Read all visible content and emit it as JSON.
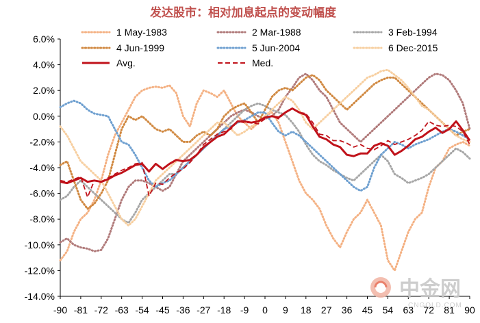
{
  "chart_data": {
    "type": "line",
    "title": "发达股市：相对加息起点的变动幅度",
    "xlabel": "",
    "ylabel": "",
    "x": [
      -90,
      -87,
      -84,
      -81,
      -78,
      -75,
      -72,
      -69,
      -66,
      -63,
      -60,
      -57,
      -54,
      -51,
      -48,
      -45,
      -42,
      -39,
      -36,
      -33,
      -30,
      -27,
      -24,
      -21,
      -18,
      -15,
      -12,
      -9,
      -6,
      -3,
      0,
      3,
      6,
      9,
      12,
      15,
      18,
      21,
      24,
      27,
      30,
      33,
      36,
      39,
      42,
      45,
      48,
      51,
      54,
      57,
      60,
      63,
      66,
      69,
      72,
      75,
      78,
      81,
      84,
      87,
      90
    ],
    "x_ticks": [
      "-90",
      "-81",
      "-72",
      "-63",
      "-54",
      "-45",
      "-36",
      "-27",
      "-18",
      "-9",
      "0",
      "9",
      "18",
      "27",
      "36",
      "45",
      "54",
      "63",
      "72",
      "81",
      "90"
    ],
    "y_ticks": [
      "6.0%",
      "4.0%",
      "2.0%",
      "0.0%",
      "-2.0%",
      "-4.0%",
      "-6.0%",
      "-8.0%",
      "-10.0%",
      "-12.0%",
      "-14.0%"
    ],
    "ylim": [
      -14,
      6
    ],
    "xlim": [
      -90,
      90
    ],
    "legend_position": "top",
    "series": [
      {
        "name": "1 May-1983",
        "style": "dotted",
        "color": "#f4b183",
        "values": [
          -11.2,
          -10.5,
          -9,
          -8,
          -7.5,
          -6.5,
          -5,
          -3,
          -1.5,
          -0.5,
          0.5,
          1.5,
          2,
          2.2,
          2.3,
          2.2,
          2.4,
          1.8,
          0,
          -0.8,
          1,
          2,
          1.8,
          1.5,
          2,
          1,
          0,
          -0.5,
          -1,
          -0.5,
          0,
          0.3,
          -0.5,
          -2,
          -3.5,
          -5,
          -6,
          -6.5,
          -7.2,
          -8.5,
          -9.5,
          -10.2,
          -9,
          -8,
          -7.5,
          -6.5,
          -7.5,
          -8.5,
          -11.2,
          -12,
          -10.5,
          -9,
          -8,
          -7.5,
          -5.5,
          -4,
          -3.5,
          -2.5,
          -2.2,
          -2,
          -2.3
        ]
      },
      {
        "name": "2 Mar-1988",
        "style": "dotted",
        "color": "#b07a7a",
        "values": [
          -9.8,
          -9.5,
          -10,
          -10.2,
          -10.3,
          -10.5,
          -10.4,
          -9.5,
          -8,
          -6.5,
          -5.5,
          -5,
          -5,
          -5.2,
          -5.5,
          -5.8,
          -5.5,
          -4.5,
          -3.5,
          -3,
          -2.5,
          -2,
          -1.5,
          -1,
          -0.5,
          0,
          0.3,
          0.5,
          0.3,
          0,
          -0.2,
          0,
          0.5,
          1.5,
          2.2,
          3,
          3.3,
          2.8,
          2,
          1.5,
          0.5,
          -0.5,
          -1,
          -1.5,
          -2,
          -1.5,
          -1,
          -0.5,
          0,
          0.5,
          1,
          1.5,
          2,
          2.5,
          3,
          3.3,
          3.2,
          2.8,
          2,
          1,
          -1
        ]
      },
      {
        "name": "3 Feb-1994",
        "style": "dotted",
        "color": "#a6a6a6",
        "values": [
          -6.5,
          -6.2,
          -5.5,
          -5,
          -5.5,
          -6,
          -6.5,
          -7,
          -7.5,
          -8,
          -8.3,
          -7.5,
          -6.5,
          -6,
          -5.5,
          -5,
          -4.5,
          -4.5,
          -4,
          -3.5,
          -3,
          -2.5,
          -2,
          -1.5,
          -1,
          -0.5,
          0,
          0.5,
          0.8,
          1,
          0.8,
          0.5,
          0.3,
          0.1,
          -0.5,
          -1.2,
          -2.2,
          -3,
          -3.5,
          -3.8,
          -4.2,
          -4.5,
          -4.8,
          -5,
          -4.5,
          -4,
          -3.5,
          -3,
          -3.5,
          -4.5,
          -4.8,
          -5.2,
          -5,
          -4.8,
          -4.5,
          -4,
          -3.5,
          -3,
          -2.5,
          -2.8,
          -3.3
        ]
      },
      {
        "name": "4 Jun-1999",
        "style": "dotted",
        "color": "#d08840",
        "values": [
          -3.8,
          -3.5,
          -5,
          -6.5,
          -7.2,
          -6.8,
          -6,
          -5,
          -3,
          -1,
          0,
          -0.3,
          0,
          -0.5,
          -1,
          -1.2,
          -1,
          -1.5,
          -2,
          -2,
          -1.5,
          -1.2,
          -1.5,
          -1,
          0,
          0.5,
          0.8,
          1,
          0.3,
          -0.5,
          0.5,
          1.5,
          2,
          2.2,
          2,
          2.5,
          3,
          3.2,
          2.8,
          2,
          1.5,
          1,
          0.5,
          1,
          1.5,
          2,
          2.5,
          2.8,
          3,
          3,
          2.5,
          2,
          1.5,
          1,
          0.5,
          0,
          -0.5,
          -1,
          -1.5,
          -1.2,
          -1
        ]
      },
      {
        "name": "5 Jun-2004",
        "style": "dotted",
        "color": "#6fa0d0",
        "values": [
          0.7,
          1.0,
          1.2,
          1.0,
          0.5,
          0.2,
          0.1,
          0,
          -1,
          -2,
          -2.2,
          -3,
          -4,
          -5,
          -5.5,
          -5.2,
          -5,
          -4.5,
          -4,
          -3.5,
          -3,
          -2.5,
          -2,
          -1.5,
          -1,
          -0.8,
          -0.5,
          -0.3,
          0,
          0.3,
          0.3,
          -0.5,
          -1.2,
          -1.5,
          -1.2,
          -1.5,
          -2,
          -2.5,
          -3,
          -3.5,
          -4,
          -4.5,
          -5,
          -5.5,
          -5.8,
          -5.5,
          -4,
          -3,
          -2.5,
          -2,
          -2.2,
          -2.5,
          -2.2,
          -2,
          -1.8,
          -1.5,
          -1.2,
          -1,
          -1.2,
          -1.5,
          -1.8
        ]
      },
      {
        "name": "6 Dec-2015",
        "style": "dotted",
        "color": "#f7cfa0",
        "values": [
          -0.8,
          -1.5,
          -2.5,
          -3.5,
          -4,
          -4.5,
          -5,
          -6,
          -7,
          -8,
          -8.5,
          -8,
          -7,
          -6,
          -5,
          -4.5,
          -4,
          -3.5,
          -3,
          -2.5,
          -2,
          -1.5,
          -1,
          -0.5,
          -0.5,
          -1,
          -1.5,
          -1.2,
          -0.8,
          -0.5,
          0,
          0.5,
          1,
          1.5,
          1.2,
          0.5,
          -0.5,
          -1,
          -0.5,
          0,
          0.5,
          1,
          1.5,
          2,
          2.5,
          3,
          3.2,
          3.5,
          3.6,
          3.2,
          2.8,
          2.2,
          1.5,
          0.8,
          0.5,
          0,
          -0.5,
          -1,
          -1.5,
          -1.8,
          -2
        ]
      },
      {
        "name": "Avg.",
        "style": "solid",
        "color": "#c0121a",
        "values": [
          -5.1,
          -5.2,
          -5,
          -4.8,
          -5.1,
          -5,
          -5.1,
          -4.9,
          -4.6,
          -4.4,
          -4.1,
          -3.8,
          -3.7,
          -4.3,
          -3.7,
          -4.1,
          -3.7,
          -3.4,
          -3.5,
          -3.4,
          -3,
          -2.4,
          -2,
          -1.6,
          -1.4,
          -0.9,
          -0.4,
          -0.4,
          -0.5,
          -0.4,
          -0.1,
          0,
          -0.1,
          0.3,
          0.6,
          0.3,
          0.1,
          -0.8,
          -1.6,
          -1.8,
          -2.2,
          -2.4,
          -3,
          -3.1,
          -2.9,
          -2.9,
          -2.3,
          -2.1,
          -2.3,
          -3,
          -2.7,
          -2.3,
          -1.8,
          -1.6,
          -1.2,
          -0.9,
          -1.3,
          -1,
          -0.4,
          -1.1,
          -1.9
        ]
      },
      {
        "name": "Med.",
        "style": "dashed",
        "color": "#c0121a",
        "values": [
          -5,
          -5.1,
          -4.9,
          -4.7,
          -6.3,
          -5,
          -5.1,
          -4.8,
          -4.5,
          -4.2,
          -4,
          -3.7,
          -3.6,
          -6.2,
          -5.2,
          -5.3,
          -4.8,
          -4.4,
          -4.1,
          -3.6,
          -3,
          -2.2,
          -1.8,
          -1.4,
          -1.2,
          -1,
          -0.4,
          -0.5,
          -0.5,
          -0.6,
          -0.2,
          0,
          -0.2,
          0.3,
          0.6,
          0.3,
          0.2,
          -0.5,
          -1.4,
          -1.5,
          -1.9,
          -1.9,
          -2.1,
          -2.4,
          -2.2,
          -2.5,
          -2.6,
          -2.3,
          -1.9,
          -2.2,
          -2,
          -1.8,
          -1.5,
          -1.1,
          -0.4,
          -0.7,
          -0.8,
          -0.7,
          -0.8,
          -1.2,
          -2.2
        ]
      }
    ]
  },
  "watermark": {
    "brand": "中金网",
    "site": "CNGOLD.COM",
    "icon": "swirl-logo-icon"
  }
}
